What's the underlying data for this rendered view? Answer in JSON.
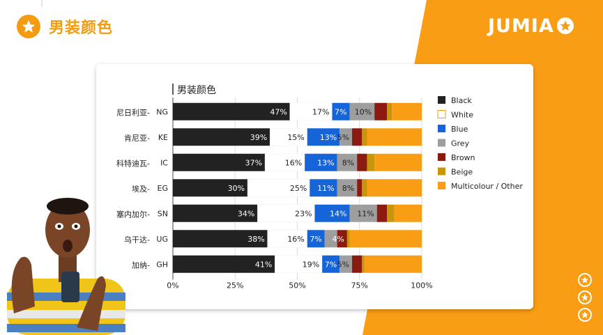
{
  "page": {
    "title": "男装颜色",
    "logo_text": "JUMIA",
    "icons": [
      "star-icon",
      "jumia-star-icon",
      "person-photo"
    ]
  },
  "colors": {
    "accent": "#f39c12",
    "Black": "#222222",
    "White": "#ffffff",
    "Blue": "#1565d8",
    "Grey": "#9e9e9e",
    "Brown": "#8b1a10",
    "Beige": "#c8960a",
    "Multicolour / Other": "#f99d14"
  },
  "chart_data": {
    "type": "bar",
    "orientation": "horizontal",
    "stacked": true,
    "title": "男装颜色",
    "categories": [
      {
        "code": "NG",
        "name": "尼日利亚"
      },
      {
        "code": "KE",
        "name": "肯尼亚"
      },
      {
        "code": "IC",
        "name": "科特迪瓦"
      },
      {
        "code": "EG",
        "name": "埃及"
      },
      {
        "code": "SN",
        "name": "塞内加尔"
      },
      {
        "code": "UG",
        "name": "乌干达"
      },
      {
        "code": "GH",
        "name": "加纳"
      }
    ],
    "series": [
      {
        "name": "Black",
        "values": [
          47,
          39,
          37,
          30,
          34,
          38,
          41
        ]
      },
      {
        "name": "White",
        "values": [
          17,
          15,
          16,
          25,
          23,
          16,
          19
        ]
      },
      {
        "name": "Blue",
        "values": [
          7,
          13,
          13,
          11,
          14,
          7,
          7
        ]
      },
      {
        "name": "Grey",
        "values": [
          10,
          5,
          8,
          8,
          11,
          5,
          5
        ]
      },
      {
        "name": "Brown",
        "values": [
          5,
          4,
          4,
          2,
          4,
          4,
          4
        ]
      },
      {
        "name": "Beige",
        "values": [
          2,
          2,
          3,
          2,
          3,
          1,
          1
        ]
      },
      {
        "name": "Multicolour / Other",
        "values": [
          12,
          22,
          19,
          22,
          11,
          29,
          23
        ]
      }
    ],
    "labels": [
      [
        "47%",
        "17%",
        "7%",
        "10%",
        "",
        "",
        ""
      ],
      [
        "39%",
        "15%",
        "13%",
        "5%",
        "",
        "",
        ""
      ],
      [
        "37%",
        "16%",
        "13%",
        "8%",
        "",
        "",
        ""
      ],
      [
        "30%",
        "25%",
        "11%",
        "8%",
        "",
        "",
        ""
      ],
      [
        "34%",
        "23%",
        "14%",
        "11%",
        "",
        "",
        ""
      ],
      [
        "38%",
        "16%",
        "7%",
        "",
        "4%",
        "",
        ""
      ],
      [
        "41%",
        "19%",
        "7%",
        "5%",
        "",
        "",
        ""
      ]
    ],
    "x_ticks": [
      "0%",
      "25%",
      "50%",
      "75%",
      "100%"
    ],
    "xlim": [
      0,
      100
    ],
    "legend_position": "right"
  }
}
